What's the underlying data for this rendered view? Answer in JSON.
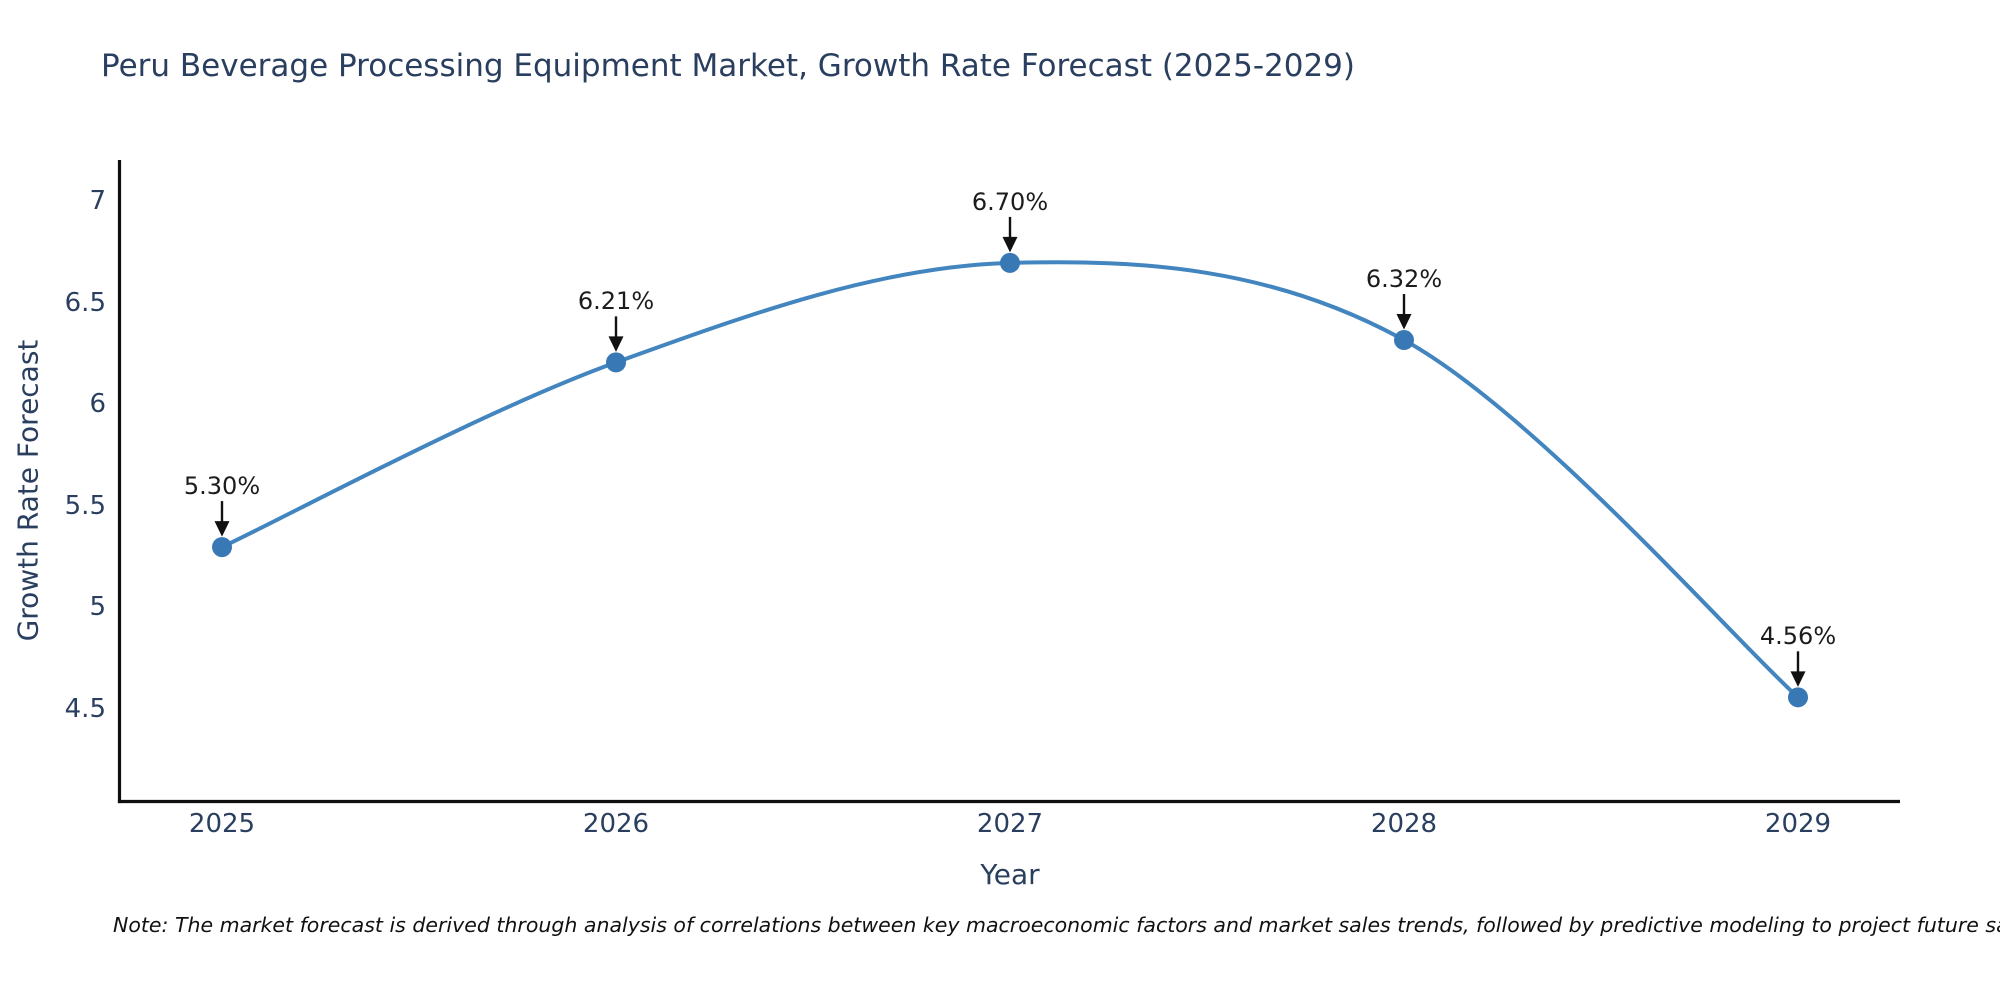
{
  "title": "Peru Beverage Processing Equipment Market, Growth Rate Forecast (2025-2029)",
  "note": "Note: The market forecast is derived through analysis of correlations between key macroeconomic factors and market sales trends, followed by predictive modeling to project future sales",
  "chart_data": {
    "type": "line",
    "title": "Peru Beverage Processing Equipment Market, Growth Rate Forecast (2025-2029)",
    "categories": [
      "2025",
      "2026",
      "2027",
      "2028",
      "2029"
    ],
    "values": [
      5.3,
      6.21,
      6.7,
      6.32,
      4.56
    ],
    "point_labels": [
      "5.30%",
      "6.21%",
      "6.70%",
      "6.32%",
      "4.56%"
    ],
    "series": [
      {
        "name": "Growth Rate Forecast",
        "values": [
          5.3,
          6.21,
          6.7,
          6.32,
          4.56
        ]
      }
    ],
    "xlabel": "Year",
    "ylabel": "Growth Rate Forecast",
    "ytick_labels": [
      "7",
      "6.5",
      "6",
      "5.5",
      "5",
      "4.5"
    ],
    "ylim": [
      4.05,
      7.2
    ],
    "line_shape": "spline",
    "grid": false,
    "legend_visible": false,
    "annotations_arrow": "down-arrow-to-point",
    "colors": {
      "line": "#4285bf",
      "marker": "#3878b4",
      "axis": "#0f0f0f",
      "axis_text": "#2a3f5f",
      "point_label_text": "#1c1c1c",
      "arrow": "#111111",
      "background": "#ffffff"
    }
  }
}
